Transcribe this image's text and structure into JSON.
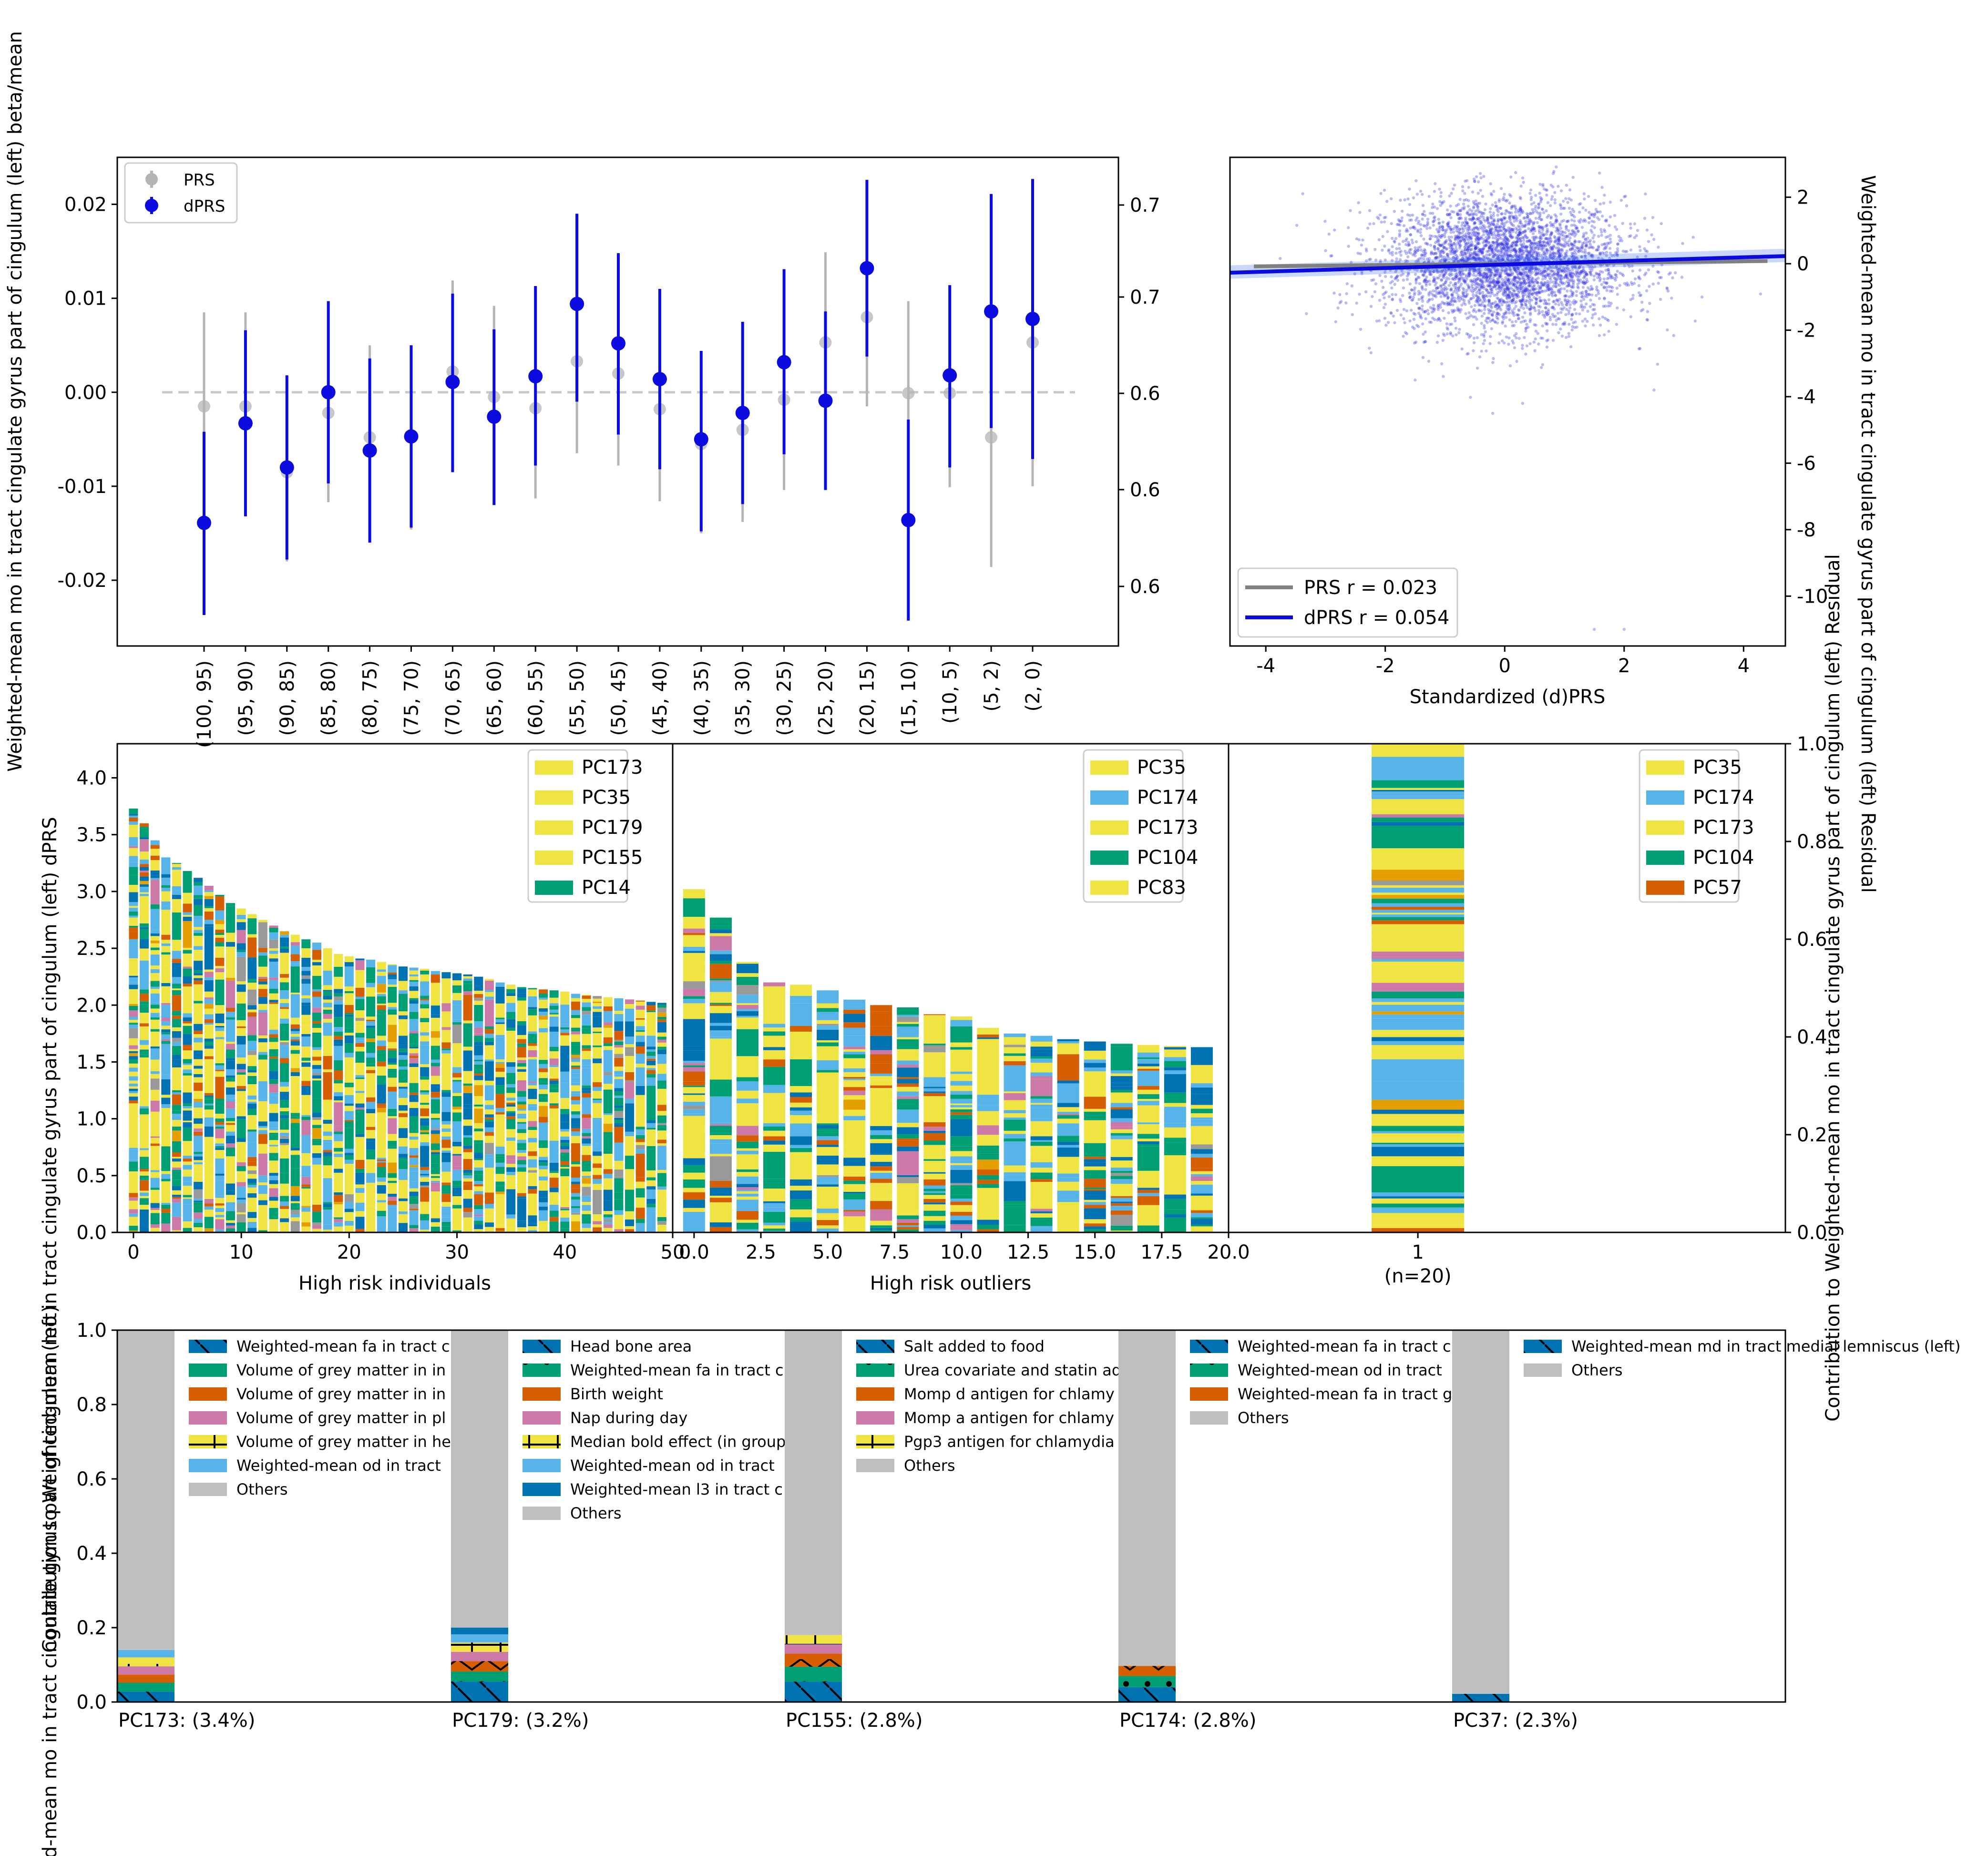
{
  "colors": {
    "prs": "#b4b4b4",
    "dprs": "#0b0bdf",
    "others": "#bfbfbf",
    "palette": [
      "#f0e442",
      "#56b4e9",
      "#009e73",
      "#0072b2",
      "#d55e00",
      "#cc79a7",
      "#e69f00",
      "#999999"
    ]
  },
  "chart_data": [
    {
      "type": "scatter",
      "panel": "errorbar",
      "ylabel": "Weighted-mean mo in tract cingulate gyrus part of cingulum (left) beta/mean",
      "ylim": [
        -0.027,
        0.025
      ],
      "yticks": [
        "-0.02",
        "-0.01",
        "0.00",
        "0.01",
        "0.02"
      ],
      "ytick_values": [
        -0.02,
        -0.01,
        0.0,
        0.01,
        0.02
      ],
      "right_yticks": [
        "0.6",
        "0.6",
        "0.6",
        "0.7",
        "0.7"
      ],
      "grid": false,
      "legend_position": "top-left",
      "legend": [
        "PRS",
        "dPRS"
      ],
      "categories": [
        "(100, 95)",
        "(95, 90)",
        "(90, 85)",
        "(85, 80)",
        "(80, 75)",
        "(75, 70)",
        "(70, 65)",
        "(65, 60)",
        "(60, 55)",
        "(55, 50)",
        "(50, 45)",
        "(45, 40)",
        "(40, 35)",
        "(35, 30)",
        "(30, 25)",
        "(25, 20)",
        "(20, 15)",
        "(15, 10)",
        "(10, 5)",
        "(5, 2)",
        "(2, 0)"
      ],
      "series": [
        {
          "name": "PRS",
          "values": [
            -0.0015,
            -0.0015,
            -0.0085,
            -0.0022,
            -0.0048,
            -0.0048,
            0.0022,
            -0.0005,
            -0.0017,
            0.0033,
            0.002,
            -0.0018,
            -0.0055,
            -0.004,
            -0.0008,
            0.0053,
            0.008,
            -0.0001,
            -0.0001,
            -0.0048,
            0.0053
          ],
          "low": [
            -0.0115,
            -0.0115,
            -0.018,
            -0.0117,
            -0.0146,
            -0.0146,
            -0.0073,
            -0.0103,
            -0.0113,
            -0.0065,
            -0.0078,
            -0.0116,
            -0.015,
            -0.0138,
            -0.0104,
            -0.0043,
            -0.0015,
            -0.0097,
            -0.0101,
            -0.0186,
            -0.01
          ],
          "high": [
            0.0085,
            0.0085,
            0.001,
            0.0073,
            0.005,
            0.005,
            0.0119,
            0.0092,
            0.008,
            0.0131,
            0.0118,
            0.008,
            0.004,
            0.0058,
            0.0088,
            0.0149,
            0.0175,
            0.0097,
            0.0099,
            0.009,
            0.0206
          ]
        },
        {
          "name": "dPRS",
          "values": [
            -0.0139,
            -0.0033,
            -0.008,
            0.0,
            -0.0062,
            -0.0047,
            0.0011,
            -0.0026,
            0.0017,
            0.0094,
            0.0052,
            0.0014,
            -0.005,
            -0.0022,
            0.0032,
            -0.0009,
            0.0132,
            -0.0136,
            0.0018,
            0.0086,
            0.0078
          ],
          "low": [
            -0.0237,
            -0.0132,
            -0.0178,
            -0.0097,
            -0.016,
            -0.0144,
            -0.0085,
            -0.012,
            -0.0078,
            -0.001,
            -0.0045,
            -0.0082,
            -0.0148,
            -0.0119,
            -0.0066,
            -0.0104,
            0.0038,
            -0.0243,
            -0.008,
            -0.0038,
            -0.0071
          ],
          "high": [
            -0.0042,
            0.0066,
            0.0018,
            0.0097,
            0.0036,
            0.005,
            0.0105,
            0.0067,
            0.0113,
            0.019,
            0.0148,
            0.011,
            0.0044,
            0.0075,
            0.0131,
            0.0086,
            0.0226,
            -0.0029,
            0.0114,
            0.0211,
            0.0227
          ]
        }
      ]
    },
    {
      "type": "scatter",
      "panel": "regression",
      "xlabel": "Standardized (d)PRS",
      "ylabel": "Weighted-mean mo in tract cingulate gyrus part of cingulum (left) Residual",
      "xlim": [
        -4.6,
        4.7
      ],
      "ylim": [
        -11.5,
        3.2
      ],
      "xticks": [
        "-4",
        "-2",
        "0",
        "2",
        "4"
      ],
      "xtick_values": [
        -4,
        -2,
        0,
        2,
        4
      ],
      "yticks": [
        "-10",
        "-8",
        "-6",
        "-4",
        "-2",
        "0",
        "2"
      ],
      "ytick_values": [
        -10,
        -8,
        -6,
        -4,
        -2,
        0,
        2
      ],
      "legend_position": "bottom-left",
      "legend": [
        {
          "name": "PRS",
          "text": "PRS r = 0.023",
          "r": 0.023
        },
        {
          "name": "dPRS",
          "text": "dPRS r = 0.054",
          "r": 0.054
        }
      ],
      "lines": [
        {
          "name": "PRS",
          "x": [
            -4.2,
            4.4
          ],
          "y": [
            -0.08,
            0.08
          ]
        },
        {
          "name": "dPRS",
          "x": [
            -4.6,
            4.7
          ],
          "y": [
            -0.27,
            0.23
          ]
        }
      ],
      "point_cloud": {
        "count": 4000,
        "x_mean": 0,
        "x_sd": 1,
        "y_mean": 0,
        "y_sd": 1,
        "outliers": [
          [
            -0.2,
            -4.5
          ],
          [
            0.3,
            -4.2
          ],
          [
            -1.5,
            -3.5
          ],
          [
            2.5,
            -3.8
          ],
          [
            1.5,
            -11.0
          ],
          [
            2.0,
            -11.0
          ]
        ]
      }
    },
    {
      "type": "bar",
      "panel": "stacked-left",
      "xlabel": "High risk individuals",
      "ylabel": "Contribution to Weighted-mean mo in tract cingulate gyrus part of cingulum (left) dPRS",
      "xlim": [
        -1.5,
        50
      ],
      "ylim": [
        0,
        4.3
      ],
      "xticks": [
        "0",
        "10",
        "20",
        "30",
        "40",
        "50"
      ],
      "xtick_values": [
        0,
        10,
        20,
        30,
        40,
        50
      ],
      "yticks": [
        "0.0",
        "0.5",
        "1.0",
        "1.5",
        "2.0",
        "2.5",
        "3.0",
        "3.5",
        "4.0"
      ],
      "ytick_values": [
        0,
        0.5,
        1,
        1.5,
        2,
        2.5,
        3,
        3.5,
        4
      ],
      "legend_position": "top-right",
      "legend": [
        {
          "name": "PC173",
          "color": "#f0e442"
        },
        {
          "name": "PC35",
          "color": "#f0e442"
        },
        {
          "name": "PC179",
          "color": "#f0e442"
        },
        {
          "name": "PC155",
          "color": "#f0e442"
        },
        {
          "name": "PC14",
          "color": "#009e73"
        }
      ],
      "totals": [
        3.73,
        3.6,
        3.45,
        3.3,
        3.25,
        3.18,
        3.12,
        3.05,
        2.97,
        2.9,
        2.85,
        2.8,
        2.75,
        2.7,
        2.65,
        2.62,
        2.58,
        2.55,
        2.5,
        2.45,
        2.43,
        2.41,
        2.4,
        2.38,
        2.36,
        2.34,
        2.33,
        2.32,
        2.3,
        2.29,
        2.28,
        2.27,
        2.25,
        2.23,
        2.2,
        2.18,
        2.16,
        2.15,
        2.14,
        2.13,
        2.12,
        2.1,
        2.09,
        2.08,
        2.07,
        2.06,
        2.05,
        2.04,
        2.03,
        2.02
      ]
    },
    {
      "type": "bar",
      "panel": "stacked-middle",
      "xlabel": "High risk outliers",
      "xlim": [
        -0.8,
        20
      ],
      "ylim": [
        0,
        4.3
      ],
      "xticks": [
        "0.0",
        "2.5",
        "5.0",
        "7.5",
        "10.0",
        "12.5",
        "15.0",
        "17.5",
        "20.0"
      ],
      "xtick_values": [
        0,
        2.5,
        5,
        7.5,
        10,
        12.5,
        15,
        17.5,
        20
      ],
      "legend_position": "top-right",
      "legend": [
        {
          "name": "PC35",
          "color": "#f0e442"
        },
        {
          "name": "PC174",
          "color": "#56b4e9"
        },
        {
          "name": "PC173",
          "color": "#f0e442"
        },
        {
          "name": "PC104",
          "color": "#009e73"
        },
        {
          "name": "PC83",
          "color": "#f0e442"
        }
      ],
      "totals": [
        3.02,
        2.77,
        2.38,
        2.2,
        2.18,
        2.13,
        2.05,
        2.0,
        1.98,
        1.92,
        1.9,
        1.8,
        1.75,
        1.73,
        1.7,
        1.68,
        1.66,
        1.65,
        1.64,
        1.63
      ]
    },
    {
      "type": "bar",
      "panel": "stacked-right",
      "ylabel": "Contribution to Weighted-mean mo in tract cingulate gyrus part of cingulum (left) Residual",
      "xlim": [
        -1.7,
        3.3
      ],
      "ylim": [
        0,
        1.0
      ],
      "xticks": [
        "1"
      ],
      "xtick_values": [
        0
      ],
      "xtick_sublabel": "(n=20)",
      "yticks": [
        "0.0",
        "0.2",
        "0.4",
        "0.6",
        "0.8",
        "1.0"
      ],
      "ytick_values": [
        0,
        0.2,
        0.4,
        0.6,
        0.8,
        1.0
      ],
      "legend_position": "top-right",
      "legend": [
        {
          "name": "PC35",
          "color": "#f0e442"
        },
        {
          "name": "PC174",
          "color": "#56b4e9"
        },
        {
          "name": "PC173",
          "color": "#f0e442"
        },
        {
          "name": "PC104",
          "color": "#009e73"
        },
        {
          "name": "PC57",
          "color": "#d55e00"
        }
      ],
      "totals": [
        1.0
      ]
    },
    {
      "type": "bar",
      "panel": "pc-loadings",
      "ylabel": "Weighted-mean mo in tract cingulate gyrus part of cingulum (left)",
      "ylim": [
        0,
        1.0
      ],
      "yticks": [
        "0.0",
        "0.2",
        "0.4",
        "0.6",
        "0.8",
        "1.0"
      ],
      "ytick_values": [
        0,
        0.2,
        0.4,
        0.6,
        0.8,
        1.0
      ],
      "groups": [
        {
          "title": "PC173: (3.4%)",
          "segments": [
            {
              "label": "Weighted-mean fa in tract c",
              "value": 0.028,
              "color": "#0072b2",
              "hatch": "backslash"
            },
            {
              "label": "Volume of grey matter in in",
              "value": 0.024,
              "color": "#009e73",
              "hatch": "none"
            },
            {
              "label": "Volume of grey matter in in",
              "value": 0.022,
              "color": "#d55e00",
              "hatch": "cross"
            },
            {
              "label": "Volume of grey matter in pl",
              "value": 0.022,
              "color": "#cc79a7",
              "hatch": "none"
            },
            {
              "label": "Volume of grey matter in he",
              "value": 0.024,
              "color": "#f0e442",
              "hatch": "plus"
            },
            {
              "label": "Weighted-mean od in tract",
              "value": 0.02,
              "color": "#56b4e9",
              "hatch": "none"
            },
            {
              "label": "Others",
              "value": 0.86,
              "color": "#bfbfbf",
              "hatch": "none"
            }
          ]
        },
        {
          "title": "PC179: (3.2%)",
          "segments": [
            {
              "label": "Head bone area",
              "value": 0.055,
              "color": "#0072b2",
              "hatch": "backslash"
            },
            {
              "label": "Weighted-mean fa in tract c",
              "value": 0.027,
              "color": "#009e73",
              "hatch": "dot"
            },
            {
              "label": "Birth weight",
              "value": 0.028,
              "color": "#d55e00",
              "hatch": "cross"
            },
            {
              "label": "Nap during day",
              "value": 0.025,
              "color": "#cc79a7",
              "hatch": "none"
            },
            {
              "label": "Median bold effect (in group",
              "value": 0.025,
              "color": "#f0e442",
              "hatch": "plus"
            },
            {
              "label": "Weighted-mean od in tract",
              "value": 0.022,
              "color": "#56b4e9",
              "hatch": "none"
            },
            {
              "label": "Weighted-mean l3 in tract c",
              "value": 0.018,
              "color": "#0072b2",
              "hatch": "none"
            },
            {
              "label": "Others",
              "value": 0.8,
              "color": "#bfbfbf",
              "hatch": "none"
            }
          ]
        },
        {
          "title": "PC155: (2.8%)",
          "segments": [
            {
              "label": "Salt added to food",
              "value": 0.055,
              "color": "#0072b2",
              "hatch": "backslash"
            },
            {
              "label": "Urea covariate and statin ad",
              "value": 0.04,
              "color": "#009e73",
              "hatch": "dot"
            },
            {
              "label": "Momp d antigen for chlamy",
              "value": 0.035,
              "color": "#d55e00",
              "hatch": "cross"
            },
            {
              "label": "Momp a antigen for chlamy",
              "value": 0.025,
              "color": "#cc79a7",
              "hatch": "none"
            },
            {
              "label": "Pgp3 antigen for chlamydia",
              "value": 0.025,
              "color": "#f0e442",
              "hatch": "plus"
            },
            {
              "label": "Others",
              "value": 0.82,
              "color": "#bfbfbf",
              "hatch": "none"
            }
          ]
        },
        {
          "title": "PC174: (2.8%)",
          "segments": [
            {
              "label": "Weighted-mean fa in tract c",
              "value": 0.04,
              "color": "#0072b2",
              "hatch": "backslash"
            },
            {
              "label": "Weighted-mean od in tract",
              "value": 0.03,
              "color": "#009e73",
              "hatch": "dot"
            },
            {
              "label": "Weighted-mean fa in tract g",
              "value": 0.027,
              "color": "#d55e00",
              "hatch": "cross"
            },
            {
              "label": "Others",
              "value": 0.903,
              "color": "#bfbfbf",
              "hatch": "none"
            }
          ]
        },
        {
          "title": "PC37: (2.3%)",
          "segments": [
            {
              "label": "Weighted-mean md in tract medial lemniscus (left)",
              "value": 0.022,
              "color": "#0072b2",
              "hatch": "backslash"
            },
            {
              "label": "Others",
              "value": 0.978,
              "color": "#bfbfbf",
              "hatch": "none"
            }
          ]
        }
      ]
    }
  ]
}
